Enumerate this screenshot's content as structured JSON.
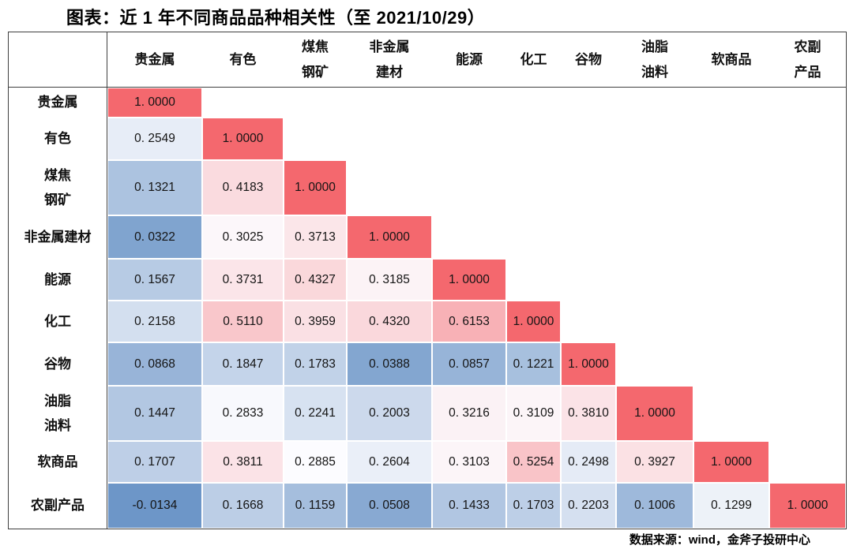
{
  "title": "图表：近 1 年不同商品品种相关性（至 2021/10/29）",
  "source_note": "数据来源：wind，金斧子投研中心",
  "chart_data": {
    "type": "heatmap",
    "subtype": "correlation-matrix-lower-triangle",
    "title": "近1年不同商品品种相关性（至2021/10/29）",
    "categories": [
      "贵金属",
      "有色",
      "煤焦钢矿",
      "非金属建材",
      "能源",
      "化工",
      "谷物",
      "油脂油料",
      "软商品",
      "农副产品"
    ],
    "col_header_lines": [
      [
        "贵金属"
      ],
      [
        "有色"
      ],
      [
        "煤焦",
        "钢矿"
      ],
      [
        "非金属",
        "建材"
      ],
      [
        "能源"
      ],
      [
        "化工"
      ],
      [
        "谷物"
      ],
      [
        "油脂",
        "油料"
      ],
      [
        "软商品"
      ],
      [
        "农副",
        "产品"
      ]
    ],
    "row_label_lines": [
      [
        "贵金属"
      ],
      [
        "有色"
      ],
      [
        "煤焦",
        "钢矿"
      ],
      [
        "非金属建材"
      ],
      [
        "能源"
      ],
      [
        "化工"
      ],
      [
        "谷物"
      ],
      [
        "油脂",
        "油料"
      ],
      [
        "软商品"
      ],
      [
        "农副产品"
      ]
    ],
    "values": [
      [
        1.0
      ],
      [
        0.2549,
        1.0
      ],
      [
        0.1321,
        0.4183,
        1.0
      ],
      [
        0.0322,
        0.3025,
        0.3713,
        1.0
      ],
      [
        0.1567,
        0.3731,
        0.4327,
        0.3185,
        1.0
      ],
      [
        0.2158,
        0.511,
        0.3959,
        0.432,
        0.6153,
        1.0
      ],
      [
        0.0868,
        0.1847,
        0.1783,
        0.0388,
        0.0857,
        0.1221,
        1.0
      ],
      [
        0.1447,
        0.2833,
        0.2241,
        0.2003,
        0.3216,
        0.3109,
        0.381,
        1.0
      ],
      [
        0.1707,
        0.3811,
        0.2885,
        0.2604,
        0.3103,
        0.5254,
        0.2498,
        0.3927,
        1.0
      ],
      [
        -0.0134,
        0.1668,
        0.1159,
        0.0508,
        0.1433,
        0.1703,
        0.2203,
        0.1006,
        0.1299,
        1.0
      ]
    ],
    "value_decimals": 4,
    "colorscale": {
      "min_value": -0.0134,
      "mid_value": 0.2885,
      "max_value": 1.0,
      "min_color": "#6D96C8",
      "mid_color": "#FCFCFF",
      "max_color": "#F4686E",
      "gamma": 0.88
    },
    "color_overrides": [
      {
        "row": 9,
        "col": 8,
        "color": "#EDF2F8"
      }
    ],
    "grid_border_color": "#3F3F3F",
    "legend": "none"
  }
}
